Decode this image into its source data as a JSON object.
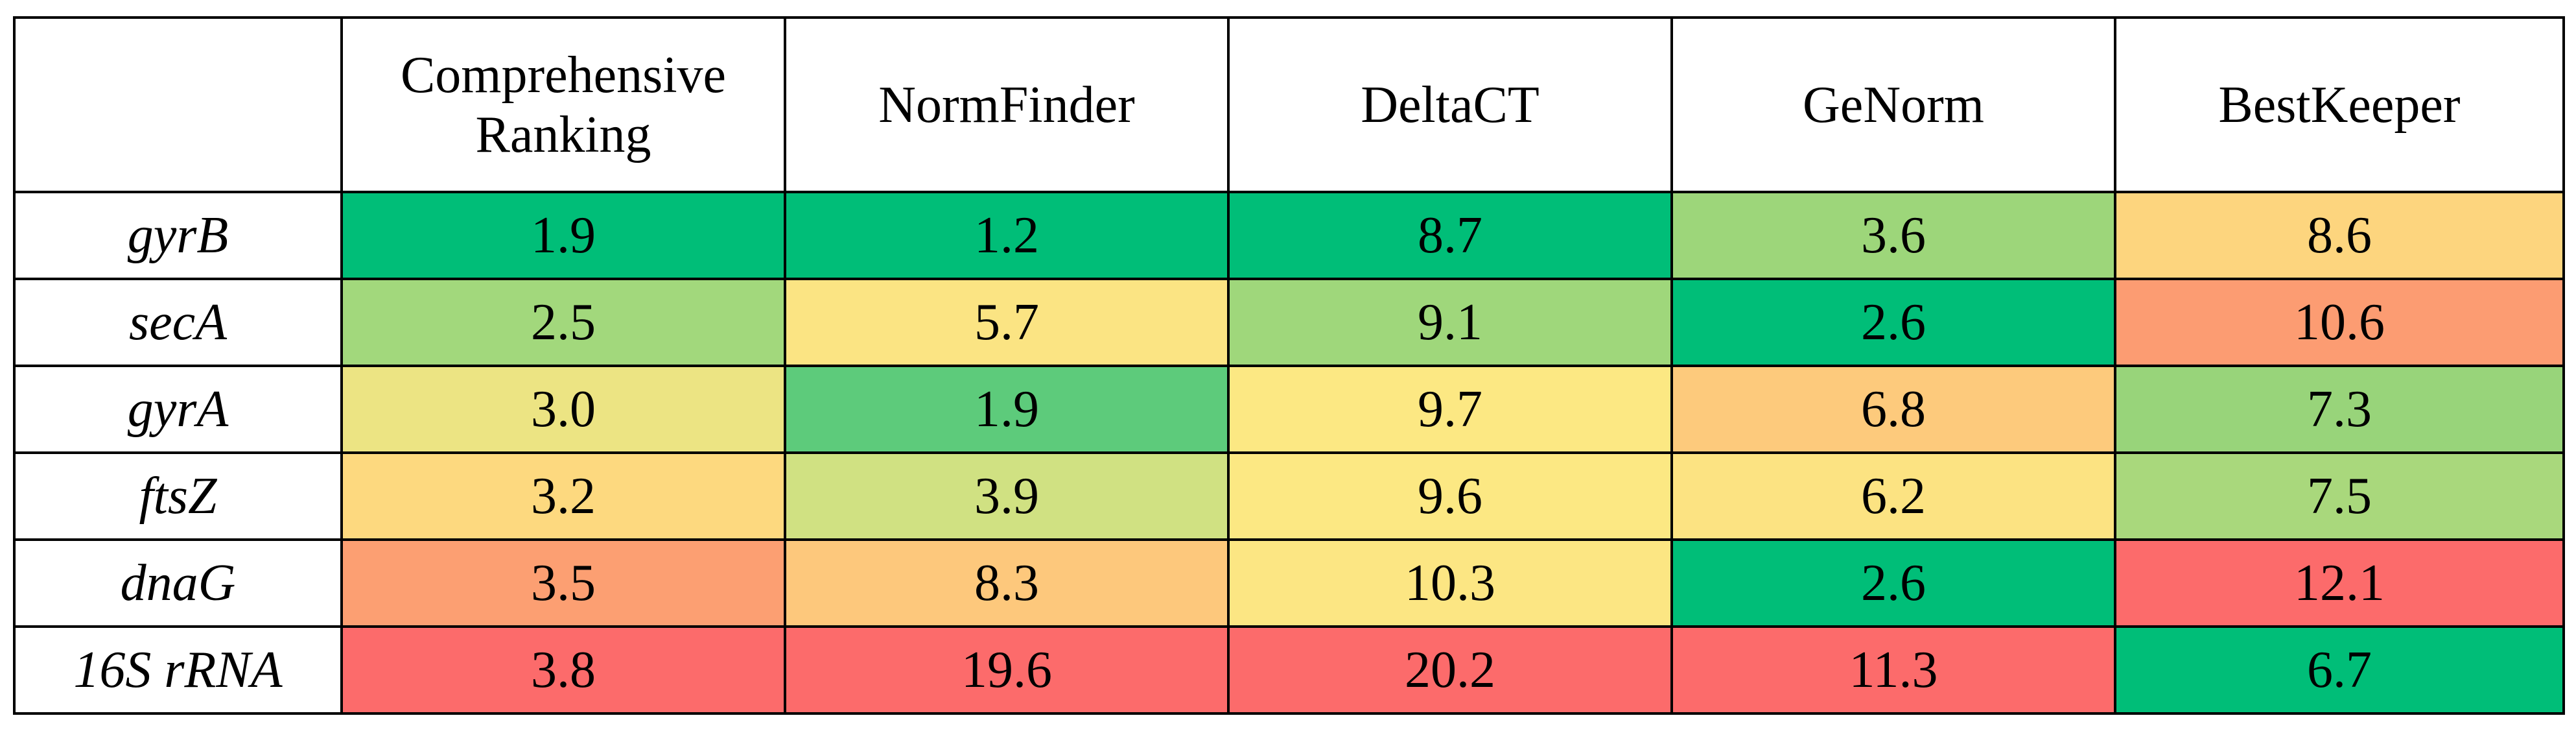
{
  "table": {
    "header": [
      "Comprehensive\nRanking",
      "NormFinder",
      "DeltaCT",
      "GeNorm",
      "BestKeeper"
    ],
    "rows": [
      {
        "label": "gyrB",
        "cells": [
          {
            "text": "1.9",
            "color": "#00be78"
          },
          {
            "text": "1.2",
            "color": "#00be78"
          },
          {
            "text": "8.7",
            "color": "#00be78"
          },
          {
            "text": "3.6",
            "color": "#9dd67a"
          },
          {
            "text": "8.6",
            "color": "#fdd57e"
          }
        ]
      },
      {
        "label": "secA",
        "cells": [
          {
            "text": "2.5",
            "color": "#a2d87c"
          },
          {
            "text": "5.7",
            "color": "#fbe483"
          },
          {
            "text": "9.1",
            "color": "#9fd77b"
          },
          {
            "text": "2.6",
            "color": "#00be78"
          },
          {
            "text": "10.6",
            "color": "#fc9c72"
          }
        ]
      },
      {
        "label": "gyrA",
        "cells": [
          {
            "text": "3.0",
            "color": "#ece483"
          },
          {
            "text": "1.9",
            "color": "#5dcb7b"
          },
          {
            "text": "9.7",
            "color": "#fce883"
          },
          {
            "text": "6.8",
            "color": "#fdca7c"
          },
          {
            "text": "7.3",
            "color": "#98d47a"
          }
        ]
      },
      {
        "label": "ftsZ",
        "cells": [
          {
            "text": "3.2",
            "color": "#fdd97f"
          },
          {
            "text": "3.9",
            "color": "#d0e182"
          },
          {
            "text": "9.6",
            "color": "#fce883"
          },
          {
            "text": "6.2",
            "color": "#fce382"
          },
          {
            "text": "7.5",
            "color": "#a9d87c"
          }
        ]
      },
      {
        "label": "dnaG",
        "cells": [
          {
            "text": "3.5",
            "color": "#fc9f72"
          },
          {
            "text": "8.3",
            "color": "#fdc87c"
          },
          {
            "text": "10.3",
            "color": "#fce683"
          },
          {
            "text": "2.6",
            "color": "#00be78"
          },
          {
            "text": "12.1",
            "color": "#fc6b6b"
          }
        ]
      },
      {
        "label": "16S rRNA",
        "cells": [
          {
            "text": "3.8",
            "color": "#fc6b6b"
          },
          {
            "text": "19.6",
            "color": "#fc6b6b"
          },
          {
            "text": "20.2",
            "color": "#fc6b6b"
          },
          {
            "text": "11.3",
            "color": "#fc6b6b"
          },
          {
            "text": "6.7",
            "color": "#00be78"
          }
        ]
      }
    ]
  }
}
